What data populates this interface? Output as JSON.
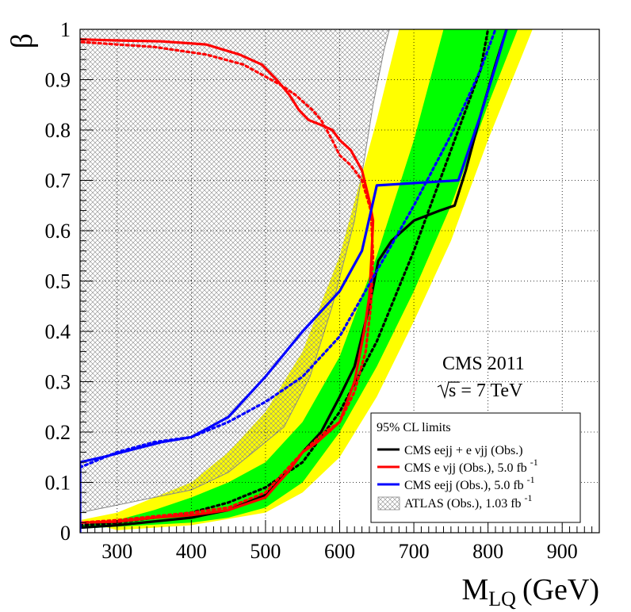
{
  "chart_data": {
    "type": "line",
    "title": "",
    "xlabel": "M",
    "xlabel_sub": "LQ",
    "xlabel_unit": "(GeV)",
    "ylabel": "β",
    "xlim": [
      250,
      950
    ],
    "ylim": [
      0,
      1
    ],
    "grid": true,
    "x_ticks": [
      300,
      400,
      500,
      600,
      700,
      800,
      900
    ],
    "x_tick_labels": [
      "300",
      "400",
      "500",
      "600",
      "700",
      "800",
      "900"
    ],
    "y_ticks": [
      0,
      0.1,
      0.2,
      0.3,
      0.4,
      0.5,
      0.6,
      0.7,
      0.8,
      0.9,
      1
    ],
    "y_tick_labels": [
      "0",
      "0.1",
      "0.2",
      "0.3",
      "0.4",
      "0.5",
      "0.6",
      "0.7",
      "0.8",
      "0.9",
      "1"
    ],
    "annotations": [
      {
        "id": "cms",
        "text": "CMS 2011"
      },
      {
        "id": "energy",
        "text_pre": "s",
        "text_post": " = 7 TeV"
      }
    ],
    "legend": {
      "position": "bottom-right",
      "header": "95% CL limits",
      "entries": [
        {
          "label": "CMS eejj + e νjj (Obs.)",
          "color": "#000000",
          "kind": "line"
        },
        {
          "label": "CMS e νjj (Obs.), 5.0 fb",
          "sup": "-1",
          "color": "#ff0000",
          "kind": "line"
        },
        {
          "label": "CMS eejj (Obs.), 5.0 fb",
          "sup": "-1",
          "color": "#0000ff",
          "kind": "line"
        },
        {
          "label": "ATLAS (Obs.), 1.03 fb",
          "sup": "-1",
          "color": "#888888",
          "kind": "hatch"
        }
      ]
    },
    "bands": [
      {
        "name": "Expected ±2σ",
        "color": "#ffff00",
        "lower": [
          [
            300,
            0.005
          ],
          [
            400,
            0.015
          ],
          [
            500,
            0.04
          ],
          [
            550,
            0.08
          ],
          [
            600,
            0.15
          ],
          [
            650,
            0.27
          ],
          [
            700,
            0.42
          ],
          [
            750,
            0.58
          ],
          [
            800,
            0.78
          ],
          [
            860,
            1.0
          ]
        ],
        "upper": [
          [
            250,
            0.025
          ],
          [
            300,
            0.04
          ],
          [
            350,
            0.07
          ],
          [
            400,
            0.1
          ],
          [
            450,
            0.16
          ],
          [
            500,
            0.24
          ],
          [
            550,
            0.36
          ],
          [
            600,
            0.55
          ],
          [
            650,
            0.82
          ],
          [
            680,
            1.0
          ]
        ]
      },
      {
        "name": "Expected ±1σ",
        "color": "#00ff00",
        "lower": [
          [
            250,
            0.008
          ],
          [
            300,
            0.012
          ],
          [
            400,
            0.02
          ],
          [
            450,
            0.03
          ],
          [
            500,
            0.05
          ],
          [
            550,
            0.1
          ],
          [
            600,
            0.2
          ],
          [
            650,
            0.33
          ],
          [
            700,
            0.48
          ],
          [
            750,
            0.65
          ],
          [
            800,
            0.85
          ],
          [
            840,
            1.0
          ]
        ],
        "upper": [
          [
            250,
            0.015
          ],
          [
            300,
            0.025
          ],
          [
            350,
            0.045
          ],
          [
            400,
            0.07
          ],
          [
            450,
            0.1
          ],
          [
            500,
            0.14
          ],
          [
            550,
            0.22
          ],
          [
            600,
            0.35
          ],
          [
            650,
            0.55
          ],
          [
            700,
            0.78
          ],
          [
            740,
            1.0
          ]
        ]
      }
    ],
    "series": [
      {
        "name": "CMS eejj + e νjj (Obs.)",
        "color": "#000000",
        "style": "solid",
        "points": [
          [
            250,
            0.01
          ],
          [
            300,
            0.015
          ],
          [
            400,
            0.03
          ],
          [
            450,
            0.045
          ],
          [
            500,
            0.075
          ],
          [
            530,
            0.12
          ],
          [
            550,
            0.16
          ],
          [
            575,
            0.2
          ],
          [
            600,
            0.27
          ],
          [
            620,
            0.33
          ],
          [
            640,
            0.45
          ],
          [
            652,
            0.54
          ],
          [
            670,
            0.58
          ],
          [
            700,
            0.62
          ],
          [
            735,
            0.64
          ],
          [
            755,
            0.65
          ],
          [
            770,
            0.72
          ],
          [
            790,
            0.83
          ],
          [
            810,
            0.93
          ],
          [
            825,
            1.0
          ]
        ]
      },
      {
        "name": "CMS eejj + e νjj (Exp.)",
        "color": "#000000",
        "style": "dotted",
        "points": [
          [
            250,
            0.015
          ],
          [
            300,
            0.02
          ],
          [
            350,
            0.03
          ],
          [
            400,
            0.04
          ],
          [
            450,
            0.06
          ],
          [
            500,
            0.09
          ],
          [
            550,
            0.14
          ],
          [
            600,
            0.24
          ],
          [
            650,
            0.38
          ],
          [
            700,
            0.56
          ],
          [
            750,
            0.76
          ],
          [
            790,
            0.92
          ],
          [
            800,
            1.0
          ]
        ]
      },
      {
        "name": "CMS e νjj (Obs.), 5.0 fb-1",
        "color": "#ff0000",
        "style": "solid",
        "points": [
          [
            250,
            0.02
          ],
          [
            300,
            0.022
          ],
          [
            350,
            0.03
          ],
          [
            400,
            0.035
          ],
          [
            450,
            0.045
          ],
          [
            500,
            0.07
          ],
          [
            530,
            0.12
          ],
          [
            550,
            0.16
          ],
          [
            570,
            0.18
          ],
          [
            600,
            0.22
          ],
          [
            620,
            0.3
          ],
          [
            633,
            0.4
          ],
          [
            640,
            0.47
          ],
          [
            643,
            0.55
          ],
          [
            645,
            0.62
          ],
          [
            640,
            0.66
          ],
          [
            630,
            0.72
          ],
          [
            615,
            0.76
          ],
          [
            600,
            0.78
          ],
          [
            590,
            0.8
          ],
          [
            575,
            0.81
          ],
          [
            558,
            0.82
          ],
          [
            545,
            0.84
          ],
          [
            532,
            0.87
          ],
          [
            515,
            0.9
          ],
          [
            495,
            0.93
          ],
          [
            465,
            0.95
          ],
          [
            420,
            0.97
          ],
          [
            360,
            0.976
          ],
          [
            300,
            0.978
          ],
          [
            250,
            0.98
          ]
        ]
      },
      {
        "name": "CMS e νjj (Exp.), 5.0 fb-1",
        "color": "#ff0000",
        "style": "dotted",
        "points": [
          [
            250,
            0.02
          ],
          [
            300,
            0.025
          ],
          [
            400,
            0.04
          ],
          [
            450,
            0.05
          ],
          [
            500,
            0.08
          ],
          [
            550,
            0.16
          ],
          [
            580,
            0.2
          ],
          [
            600,
            0.22
          ],
          [
            620,
            0.28
          ],
          [
            635,
            0.36
          ],
          [
            642,
            0.45
          ],
          [
            645,
            0.55
          ],
          [
            642,
            0.64
          ],
          [
            630,
            0.7
          ],
          [
            615,
            0.73
          ],
          [
            600,
            0.75
          ],
          [
            590,
            0.78
          ],
          [
            575,
            0.82
          ],
          [
            563,
            0.84
          ],
          [
            540,
            0.87
          ],
          [
            520,
            0.89
          ],
          [
            495,
            0.91
          ],
          [
            470,
            0.93
          ],
          [
            420,
            0.95
          ],
          [
            350,
            0.965
          ],
          [
            300,
            0.97
          ],
          [
            250,
            0.975
          ]
        ]
      },
      {
        "name": "CMS eejj (Obs.), 5.0 fb-1",
        "color": "#0000ff",
        "style": "solid",
        "points": [
          [
            250,
            0.0
          ],
          [
            250,
            0.14
          ],
          [
            280,
            0.15
          ],
          [
            320,
            0.165
          ],
          [
            360,
            0.18
          ],
          [
            400,
            0.19
          ],
          [
            450,
            0.23
          ],
          [
            500,
            0.31
          ],
          [
            550,
            0.4
          ],
          [
            600,
            0.48
          ],
          [
            630,
            0.56
          ],
          [
            650,
            0.69
          ],
          [
            705,
            0.695
          ],
          [
            760,
            0.7
          ],
          [
            790,
            0.83
          ],
          [
            815,
            0.95
          ],
          [
            825,
            1.0
          ]
        ]
      },
      {
        "name": "CMS eejj (Exp.), 5.0 fb-1",
        "color": "#0000ff",
        "style": "dotted",
        "points": [
          [
            250,
            0.13
          ],
          [
            300,
            0.16
          ],
          [
            350,
            0.18
          ],
          [
            400,
            0.19
          ],
          [
            450,
            0.22
          ],
          [
            500,
            0.26
          ],
          [
            550,
            0.31
          ],
          [
            600,
            0.39
          ],
          [
            650,
            0.52
          ],
          [
            700,
            0.65
          ],
          [
            750,
            0.79
          ],
          [
            790,
            0.92
          ],
          [
            810,
            1.0
          ]
        ]
      }
    ],
    "hatched_region": {
      "name": "ATLAS (Obs.), 1.03 fb-1",
      "color": "#888888",
      "boundary": [
        [
          250,
          0.04
        ],
        [
          300,
          0.055
        ],
        [
          350,
          0.07
        ],
        [
          400,
          0.085
        ],
        [
          450,
          0.12
        ],
        [
          500,
          0.18
        ],
        [
          525,
          0.21
        ],
        [
          560,
          0.31
        ],
        [
          590,
          0.45
        ],
        [
          620,
          0.62
        ],
        [
          645,
          0.85
        ],
        [
          660,
          0.96
        ],
        [
          667,
          1.0
        ]
      ]
    }
  }
}
